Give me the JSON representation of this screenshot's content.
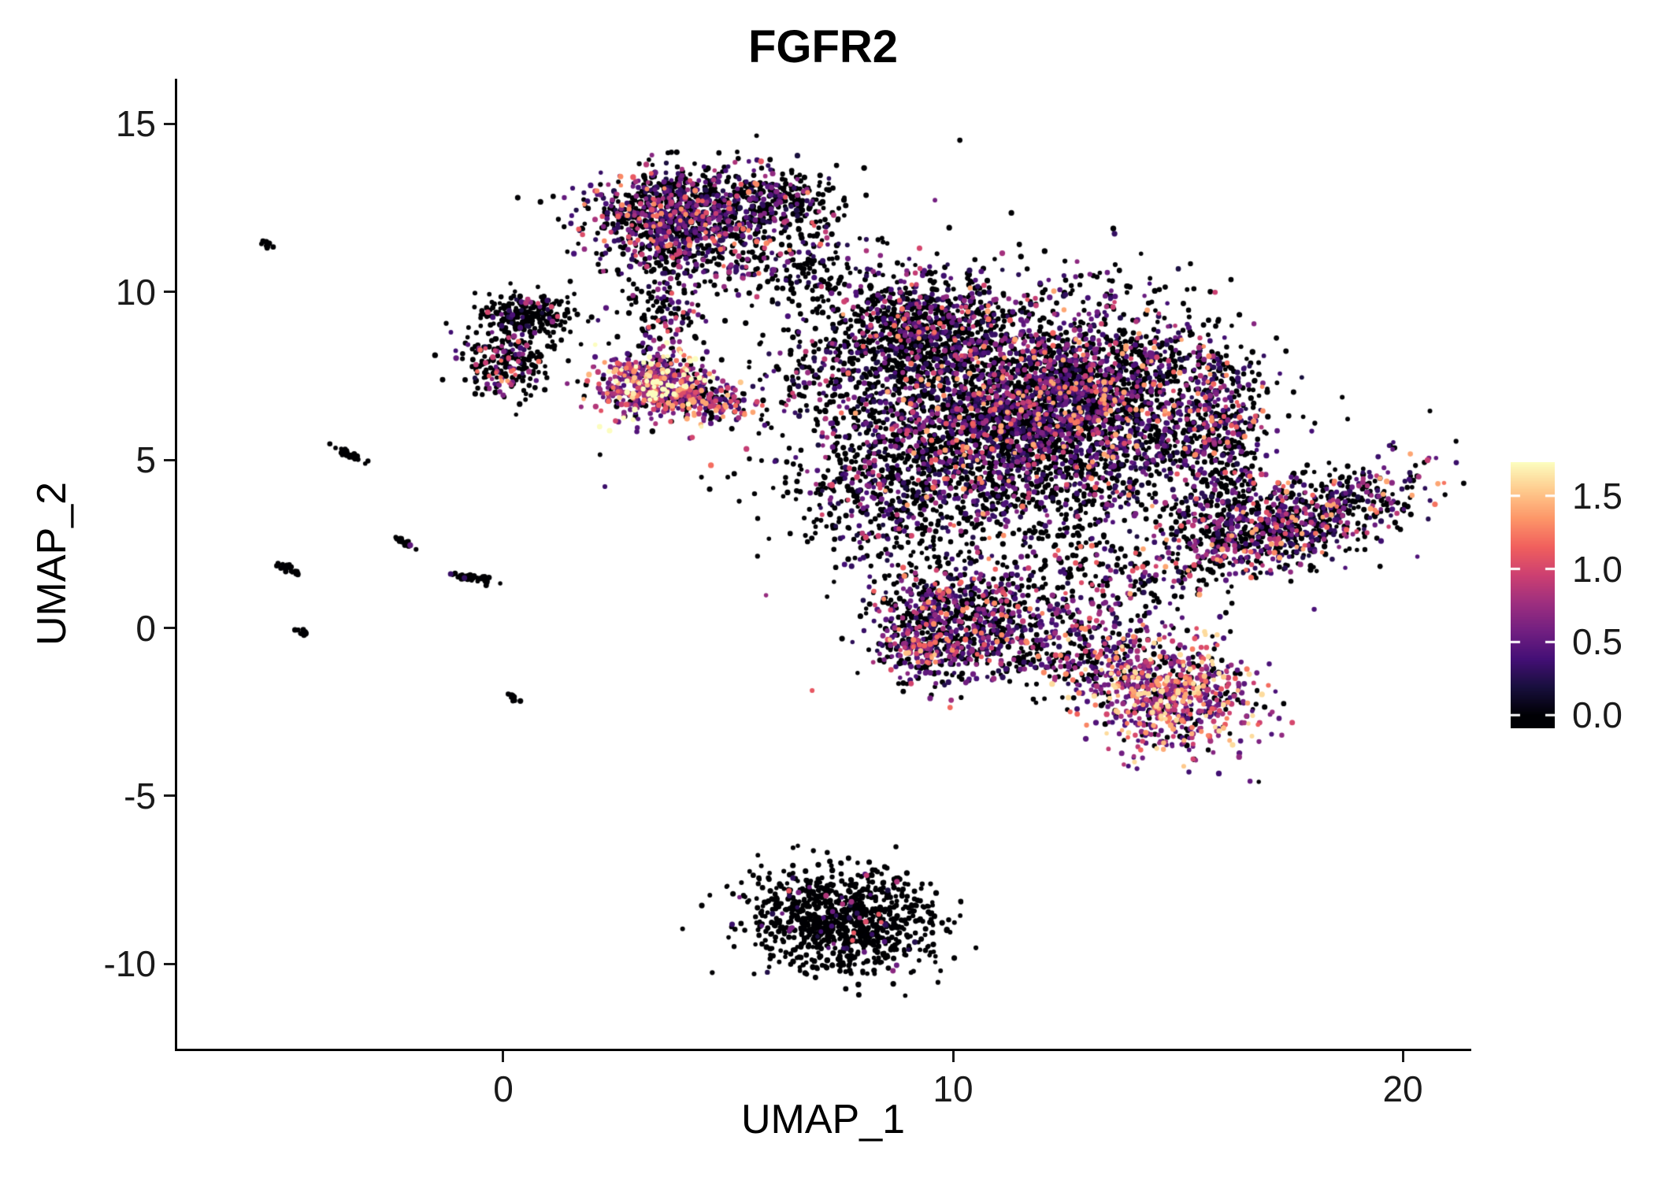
{
  "title": "FGFR2",
  "chart_data": {
    "type": "scatter",
    "title": "FGFR2",
    "xlabel": "UMAP_1",
    "ylabel": "UMAP_2",
    "xlim": [
      -7.25,
      21.47
    ],
    "ylim": [
      -12.52,
      16.34
    ],
    "grid": false,
    "x_ticks": [
      {
        "value": 0,
        "label": "0"
      },
      {
        "value": 10,
        "label": "10"
      },
      {
        "value": 20,
        "label": "20"
      }
    ],
    "y_ticks": [
      {
        "value": 15,
        "label": "15"
      },
      {
        "value": 10,
        "label": "10"
      },
      {
        "value": 5,
        "label": "5"
      },
      {
        "value": 0,
        "label": "0"
      },
      {
        "value": -5,
        "label": "-5"
      },
      {
        "value": -10,
        "label": "-10"
      }
    ],
    "colorbar": {
      "position": "right",
      "vmin": 0.0,
      "vmax": 1.73,
      "bar_vmin": -0.09,
      "bar_vmax": 1.73,
      "ticks": [
        {
          "value": 1.5,
          "label": "1.5"
        },
        {
          "value": 1.0,
          "label": "1.0"
        },
        {
          "value": 0.5,
          "label": "0.5"
        },
        {
          "value": 0.0,
          "label": "0.0"
        }
      ]
    },
    "colormap_name": "magma",
    "colormap": [
      "#000004",
      "#180f3d",
      "#440f76",
      "#721f81",
      "#9e2f7f",
      "#cd4071",
      "#f1605d",
      "#fd9668",
      "#feca8d",
      "#fcfdbf"
    ],
    "zero_expression_color": "#000004",
    "point_radius_px": 3,
    "clusters": [
      {
        "name": "top-blob-core",
        "center": [
          3.9,
          12.4
        ],
        "sd": [
          1.0,
          0.62
        ],
        "rot": 0,
        "n": 900,
        "pos_frac": 0.48,
        "expr_mean": 0.5,
        "expr_base": 0.2,
        "expr_max": 1.3
      },
      {
        "name": "top-blob-east",
        "center": [
          5.9,
          12.7
        ],
        "sd": [
          0.8,
          0.55
        ],
        "rot": 0,
        "n": 320,
        "pos_frac": 0.3,
        "expr_mean": 0.45,
        "expr_base": 0.18,
        "expr_max": 1.1
      },
      {
        "name": "top-blob-south",
        "center": [
          4.4,
          11.1
        ],
        "sd": [
          1.1,
          0.5
        ],
        "rot": 0,
        "n": 260,
        "pos_frac": 0.4,
        "expr_mean": 0.5,
        "expr_base": 0.2,
        "expr_max": 1.2
      },
      {
        "name": "top-main-trail",
        "center": [
          6.8,
          10.6
        ],
        "sd": [
          0.9,
          0.7
        ],
        "rot": 0,
        "n": 130,
        "pos_frac": 0.25,
        "expr_mean": 0.45,
        "expr_base": 0.18,
        "expr_max": 1.0
      },
      {
        "name": "left-hook-top",
        "center": [
          0.5,
          9.3
        ],
        "sd": [
          0.6,
          0.35
        ],
        "rot": 0,
        "n": 240,
        "pos_frac": 0.15,
        "expr_mean": 0.45,
        "expr_base": 0.18,
        "expr_max": 1.0
      },
      {
        "name": "left-hook-bottom",
        "center": [
          0.1,
          7.9
        ],
        "sd": [
          0.5,
          0.45
        ],
        "rot": 0,
        "n": 200,
        "pos_frac": 0.22,
        "expr_mean": 0.5,
        "expr_base": 0.2,
        "expr_max": 1.2
      },
      {
        "name": "left-hook-hot-spot",
        "center": [
          -0.1,
          7.4
        ],
        "sd": [
          0.18,
          0.12
        ],
        "rot": 0,
        "n": 20,
        "pos_frac": 0.7,
        "expr_mean": 0.7,
        "expr_base": 0.35,
        "expr_max": 1.4
      },
      {
        "name": "hot-cluster-core",
        "center": [
          3.3,
          7.2
        ],
        "sd": [
          0.62,
          0.5
        ],
        "rot": 0,
        "n": 520,
        "pos_frac": 0.82,
        "expr_mean": 0.75,
        "expr_base": 0.35,
        "expr_max": 1.73
      },
      {
        "name": "hot-cluster-east-arm",
        "center": [
          4.5,
          6.8
        ],
        "sd": [
          0.55,
          0.3
        ],
        "rot": -15,
        "n": 200,
        "pos_frac": 0.7,
        "expr_mean": 0.6,
        "expr_base": 0.3,
        "expr_max": 1.4
      },
      {
        "name": "hot-top-trail",
        "center": [
          3.5,
          9.4
        ],
        "sd": [
          0.45,
          0.85
        ],
        "rot": 0,
        "n": 150,
        "pos_frac": 0.35,
        "expr_mean": 0.5,
        "expr_base": 0.2,
        "expr_max": 1.1
      },
      {
        "name": "main-mass-core",
        "center": [
          11.4,
          6.3
        ],
        "sd": [
          2.1,
          1.7
        ],
        "rot": 0,
        "n": 3000,
        "pos_frac": 0.35,
        "expr_mean": 0.5,
        "expr_base": 0.2,
        "expr_max": 1.4
      },
      {
        "name": "main-mass-dense-east",
        "center": [
          13.0,
          7.0
        ],
        "sd": [
          1.2,
          1.2
        ],
        "rot": 0,
        "n": 1000,
        "pos_frac": 0.5,
        "expr_mean": 0.55,
        "expr_base": 0.2,
        "expr_max": 1.4
      },
      {
        "name": "main-mass-northwest",
        "center": [
          9.2,
          9.0
        ],
        "sd": [
          1.0,
          0.8
        ],
        "rot": 0,
        "n": 700,
        "pos_frac": 0.3,
        "expr_mean": 0.5,
        "expr_base": 0.2,
        "expr_max": 1.2
      },
      {
        "name": "main-mass-east-arm",
        "center": [
          15.8,
          6.0
        ],
        "sd": [
          0.6,
          1.3
        ],
        "rot": 0,
        "n": 450,
        "pos_frac": 0.45,
        "expr_mean": 0.55,
        "expr_base": 0.2,
        "expr_max": 1.3
      },
      {
        "name": "main-mass-southwest",
        "center": [
          8.4,
          3.9
        ],
        "sd": [
          0.9,
          1.0
        ],
        "rot": 0,
        "n": 300,
        "pos_frac": 0.3,
        "expr_mean": 0.45,
        "expr_base": 0.18,
        "expr_max": 1.0
      },
      {
        "name": "main-mass-halo",
        "center": [
          10.8,
          5.8
        ],
        "sd": [
          2.8,
          2.3
        ],
        "rot": 0,
        "n": 650,
        "pos_frac": 0.3,
        "expr_mean": 0.45,
        "expr_base": 0.18,
        "expr_max": 1.2
      },
      {
        "name": "west-connector",
        "center": [
          7.4,
          7.6
        ],
        "sd": [
          1.0,
          1.2
        ],
        "rot": 0,
        "n": 130,
        "pos_frac": 0.25,
        "expr_mean": 0.4,
        "expr_base": 0.18,
        "expr_max": 0.9
      },
      {
        "name": "right-wing",
        "center": [
          17.5,
          3.1
        ],
        "sd": [
          1.45,
          0.6
        ],
        "rot": 25,
        "n": 850,
        "pos_frac": 0.48,
        "expr_mean": 0.55,
        "expr_base": 0.2,
        "expr_max": 1.4
      },
      {
        "name": "wing-bridge",
        "center": [
          15.9,
          3.4
        ],
        "sd": [
          0.6,
          0.8
        ],
        "rot": 0,
        "n": 150,
        "pos_frac": 0.35,
        "expr_mean": 0.5,
        "expr_base": 0.2,
        "expr_max": 1.1
      },
      {
        "name": "south-mid-cluster",
        "center": [
          10.1,
          0.2
        ],
        "sd": [
          0.95,
          0.9
        ],
        "rot": 0,
        "n": 800,
        "pos_frac": 0.45,
        "expr_mean": 0.5,
        "expr_base": 0.2,
        "expr_max": 1.3
      },
      {
        "name": "south-mid-hot-edge",
        "center": [
          9.2,
          -0.7
        ],
        "sd": [
          0.35,
          0.3
        ],
        "rot": 0,
        "n": 100,
        "pos_frac": 0.75,
        "expr_mean": 0.75,
        "expr_base": 0.35,
        "expr_max": 1.5
      },
      {
        "name": "south-bridge",
        "center": [
          12.4,
          -0.6
        ],
        "sd": [
          1.0,
          0.6
        ],
        "rot": -10,
        "n": 280,
        "pos_frac": 0.55,
        "expr_mean": 0.6,
        "expr_base": 0.25,
        "expr_max": 1.3
      },
      {
        "name": "southeast-hot-cluster",
        "center": [
          14.8,
          -1.9
        ],
        "sd": [
          1.0,
          0.85
        ],
        "rot": -15,
        "n": 800,
        "pos_frac": 0.78,
        "expr_mean": 0.75,
        "expr_base": 0.35,
        "expr_max": 1.6
      },
      {
        "name": "main-south-scatter",
        "center": [
          13.3,
          1.2
        ],
        "sd": [
          1.2,
          0.7
        ],
        "rot": 0,
        "n": 200,
        "pos_frac": 0.4,
        "expr_mean": 0.5,
        "expr_base": 0.2,
        "expr_max": 1.1
      },
      {
        "name": "bottom-island",
        "center": [
          7.5,
          -8.7
        ],
        "sd": [
          1.05,
          0.75
        ],
        "rot": -10,
        "n": 950,
        "pos_frac": 0.05,
        "expr_mean": 0.5,
        "expr_base": 0.2,
        "expr_max": 1.1
      },
      {
        "name": "streak-1",
        "center": [
          -5.25,
          11.4
        ],
        "sd": [
          0.09,
          0.04
        ],
        "rot": -35,
        "n": 10,
        "pos_frac": 0.0,
        "expr_mean": 0.4,
        "expr_base": 0.1,
        "expr_max": 0.8
      },
      {
        "name": "streak-2",
        "center": [
          -3.45,
          5.15
        ],
        "sd": [
          0.22,
          0.05
        ],
        "rot": -35,
        "n": 30,
        "pos_frac": 0.02,
        "expr_mean": 0.4,
        "expr_base": 0.1,
        "expr_max": 0.8
      },
      {
        "name": "streak-3",
        "center": [
          -4.75,
          1.75
        ],
        "sd": [
          0.2,
          0.05
        ],
        "rot": -35,
        "n": 26,
        "pos_frac": 0.02,
        "expr_mean": 0.4,
        "expr_base": 0.1,
        "expr_max": 0.8
      },
      {
        "name": "streak-4",
        "center": [
          -2.2,
          2.55
        ],
        "sd": [
          0.18,
          0.05
        ],
        "rot": -35,
        "n": 24,
        "pos_frac": 0.02,
        "expr_mean": 0.4,
        "expr_base": 0.1,
        "expr_max": 0.8
      },
      {
        "name": "streak-5",
        "center": [
          -0.75,
          1.5
        ],
        "sd": [
          0.3,
          0.06
        ],
        "rot": -12,
        "n": 40,
        "pos_frac": 0.02,
        "expr_mean": 0.4,
        "expr_base": 0.1,
        "expr_max": 0.8
      },
      {
        "name": "streak-6",
        "center": [
          -4.5,
          -0.1
        ],
        "sd": [
          0.12,
          0.04
        ],
        "rot": -35,
        "n": 14,
        "pos_frac": 0.0,
        "expr_mean": 0.4,
        "expr_base": 0.1,
        "expr_max": 0.8
      },
      {
        "name": "streak-7",
        "center": [
          0.25,
          -2.1
        ],
        "sd": [
          0.08,
          0.04
        ],
        "rot": -35,
        "n": 8,
        "pos_frac": 0.0,
        "expr_mean": 0.4,
        "expr_base": 0.1,
        "expr_max": 0.8
      }
    ]
  }
}
